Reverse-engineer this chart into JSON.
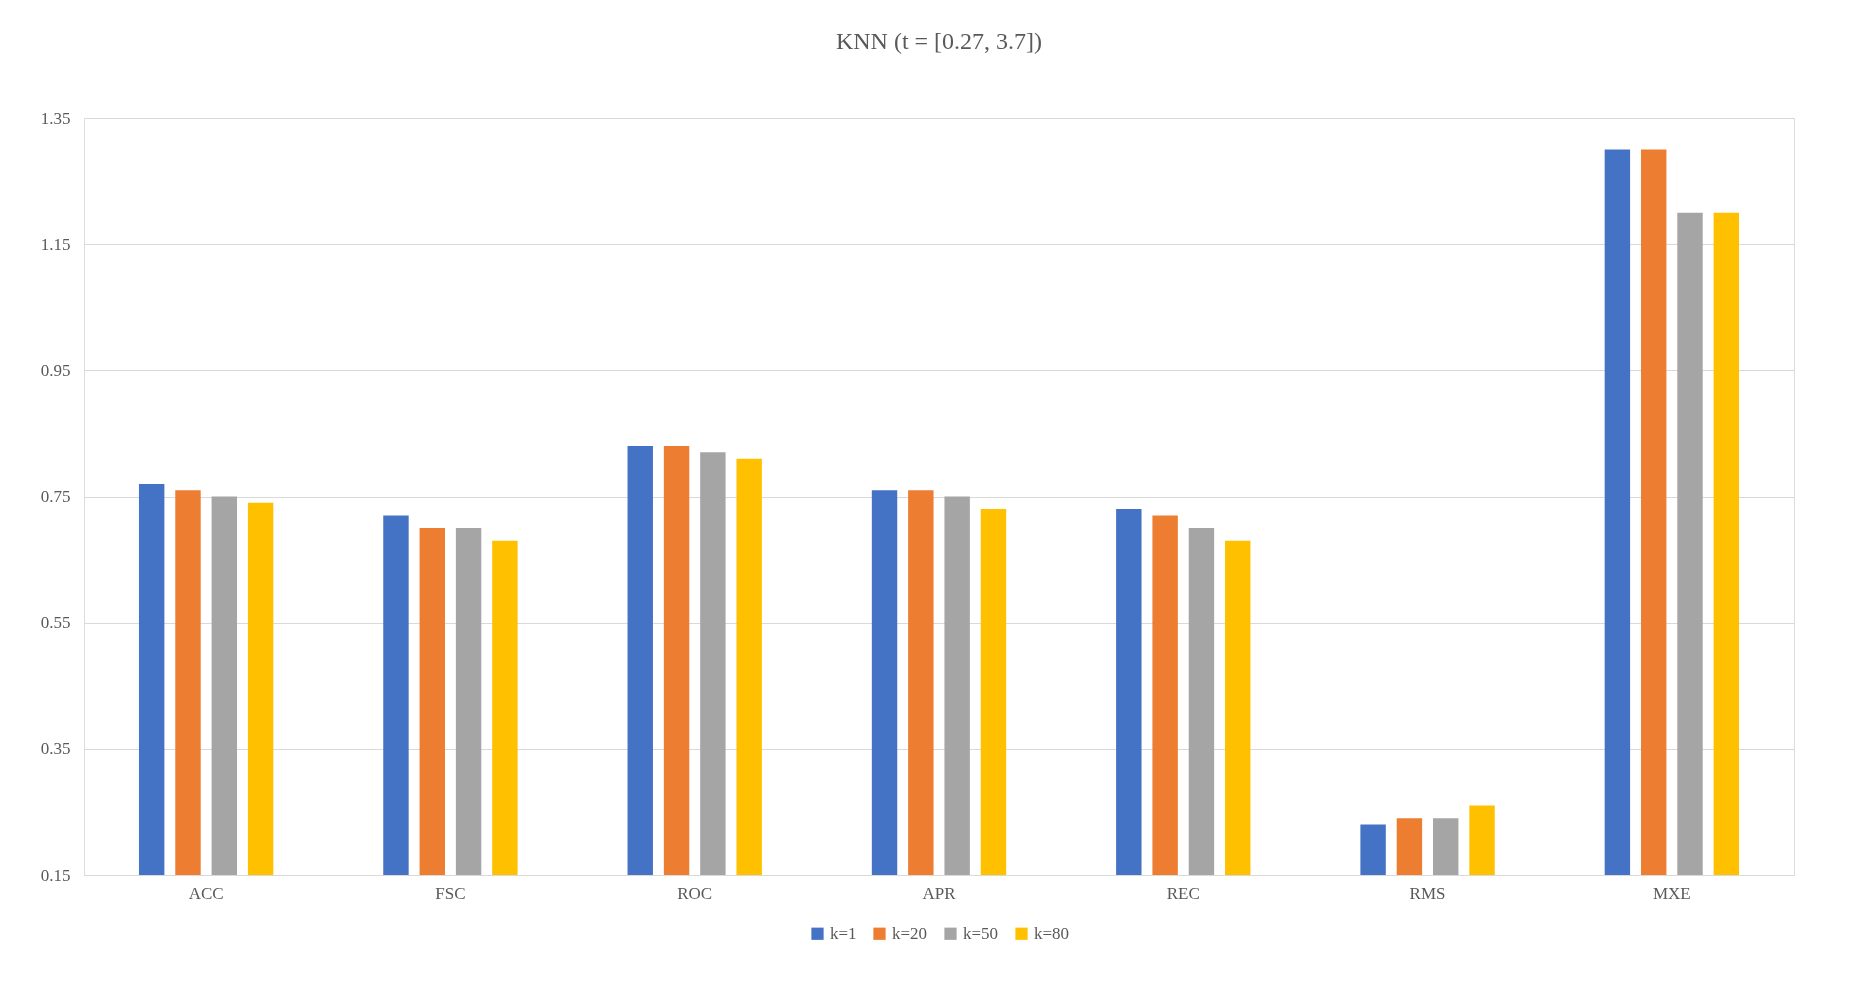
{
  "chart_data": {
    "type": "bar",
    "title": "KNN (t = [0.27, 3.7])",
    "categories": [
      "ACC",
      "FSC",
      "ROC",
      "APR",
      "REC",
      "RMS",
      "MXE"
    ],
    "series": [
      {
        "name": "k=1",
        "color": "#4472c4",
        "values": [
          0.77,
          0.72,
          0.83,
          0.76,
          0.73,
          0.23,
          1.3
        ]
      },
      {
        "name": "k=20",
        "color": "#ed7d31",
        "values": [
          0.76,
          0.7,
          0.83,
          0.76,
          0.72,
          0.24,
          1.3
        ]
      },
      {
        "name": "k=50",
        "color": "#a5a5a5",
        "values": [
          0.75,
          0.7,
          0.82,
          0.75,
          0.7,
          0.24,
          1.2
        ]
      },
      {
        "name": "k=80",
        "color": "#ffc000",
        "values": [
          0.74,
          0.68,
          0.81,
          0.73,
          0.68,
          0.26,
          1.2
        ]
      }
    ],
    "ylim": [
      0.15,
      1.35
    ],
    "yticks": [
      0.15,
      0.35,
      0.55,
      0.75,
      0.95,
      1.15,
      1.35
    ],
    "grid": "y",
    "legend": "bottom"
  }
}
